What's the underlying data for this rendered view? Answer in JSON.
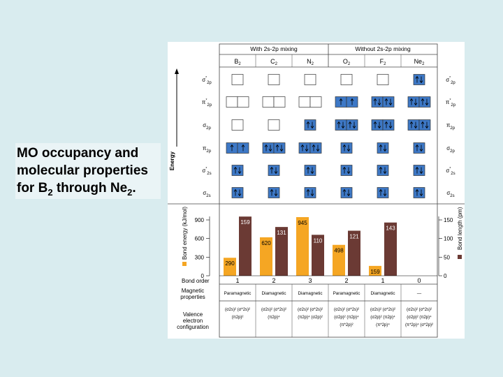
{
  "caption": {
    "line1": "MO occupancy and",
    "line2": "molecular properties",
    "line3_pre": "for B",
    "line3_sub": "2",
    "line3_mid": " through Ne",
    "line3_sub2": "2",
    "line3_end": "."
  },
  "colors": {
    "fill": "#3d78c6",
    "bar_energy": "#f5a623",
    "bar_length": "#6b3a34",
    "grid_line": "#444444",
    "bg": "#d9ecef"
  },
  "groups": {
    "with": "With 2s-2p mixing",
    "without": "Without 2s-2p mixing"
  },
  "molecules": [
    {
      "base": "B",
      "sub": "2"
    },
    {
      "base": "C",
      "sub": "2"
    },
    {
      "base": "N",
      "sub": "2"
    },
    {
      "base": "O",
      "sub": "2"
    },
    {
      "base": "F",
      "sub": "2"
    },
    {
      "base": "Ne",
      "sub": "2"
    }
  ],
  "energy_label": "Energy",
  "left_orbitals": [
    {
      "g": "σ",
      "s": "2p",
      "star": true
    },
    {
      "g": "π",
      "s": "2p",
      "star": true
    },
    {
      "g": "σ",
      "s": "2p",
      "star": false
    },
    {
      "g": "π",
      "s": "2p",
      "star": false
    },
    {
      "g": "σ",
      "s": "2s",
      "star": true
    },
    {
      "g": "σ",
      "s": "2s",
      "star": false
    }
  ],
  "right_orbitals": [
    {
      "g": "σ",
      "s": "2p",
      "star": true
    },
    {
      "g": "π",
      "s": "2p",
      "star": true
    },
    {
      "g": "π",
      "s": "2p",
      "star": false
    },
    {
      "g": "σ",
      "s": "2p",
      "star": false
    },
    {
      "g": "σ",
      "s": "2s",
      "star": true
    },
    {
      "g": "σ",
      "s": "2s",
      "star": false
    }
  ],
  "occupancy": [
    [
      [
        "e"
      ],
      [
        "e",
        "e"
      ],
      [
        "e"
      ],
      [
        "u",
        "u"
      ],
      [
        "p"
      ],
      [
        "p"
      ]
    ],
    [
      [
        "e"
      ],
      [
        "e",
        "e"
      ],
      [
        "e"
      ],
      [
        "p",
        "p"
      ],
      [
        "p"
      ],
      [
        "p"
      ]
    ],
    [
      [
        "e"
      ],
      [
        "e",
        "e"
      ],
      [
        "p"
      ],
      [
        "p",
        "p"
      ],
      [
        "p"
      ],
      [
        "p"
      ]
    ],
    [
      [
        "e"
      ],
      [
        "u",
        "u"
      ],
      [
        "p",
        "p"
      ],
      [
        "p"
      ],
      [
        "p"
      ],
      [
        "p"
      ]
    ],
    [
      [
        "e"
      ],
      [
        "p",
        "p"
      ],
      [
        "p",
        "p"
      ],
      [
        "p"
      ],
      [
        "p"
      ],
      [
        "p"
      ]
    ],
    [
      [
        "p"
      ],
      [
        "p",
        "p"
      ],
      [
        "p",
        "p"
      ],
      [
        "p"
      ],
      [
        "p"
      ],
      [
        "p"
      ]
    ]
  ],
  "chart_data": {
    "type": "bar",
    "categories": [
      "B2",
      "C2",
      "N2",
      "O2",
      "F2",
      "Ne2"
    ],
    "series": [
      {
        "name": "Bond energy (kJ/mol)",
        "values": [
          290,
          620,
          945,
          498,
          159,
          null
        ]
      },
      {
        "name": "Bond length (pm)",
        "values": [
          159,
          131,
          110,
          121,
          143,
          null
        ]
      }
    ],
    "y_left": {
      "label": "Bond energy (kJ/mol)",
      "ticks": [
        "900",
        "600",
        "300",
        "0"
      ],
      "range": [
        0,
        1000
      ]
    },
    "y_right": {
      "label": "Bond length (pm)",
      "ticks": [
        "150",
        "100",
        "50",
        "0"
      ],
      "range": [
        0,
        167
      ]
    }
  },
  "energy_value_labels": [
    "290",
    "620",
    "945",
    "498",
    "159",
    ""
  ],
  "length_value_labels": [
    "159",
    "131",
    "110",
    "121",
    "143",
    ""
  ],
  "properties": {
    "bond_order_label": "Bond order",
    "bond_order": [
      "1",
      "2",
      "3",
      "2",
      "1",
      "0"
    ],
    "magnetic_label_1": "Magnetic",
    "magnetic_label_2": "properties",
    "magnetic": [
      "Paramagnetic",
      "Diamagnetic",
      "Diamagnetic",
      "Paramagnetic",
      "Diamagnetic",
      "—"
    ],
    "valence_label_1": "Valence",
    "valence_label_2": "electron",
    "valence_label_3": "configuration",
    "valence": [
      [
        "(σ2s)² (σ*2s)²",
        "(π2p)²"
      ],
      [
        "(σ2s)² (σ*2s)²",
        "(π2p)⁴"
      ],
      [
        "(σ2s)² (σ*2s)²",
        "(π2p)⁴ (σ2p)²"
      ],
      [
        "(σ2s)² (σ*2s)²",
        "(σ2p)² (π2p)⁴",
        "(π*2p)²"
      ],
      [
        "(σ2s)² (σ*2s)²",
        "(σ2p)² (π2p)⁴",
        "(π*2p)⁴"
      ],
      [
        "(σ2s)² (σ*2s)²",
        "(σ2p)² (π2p)⁴",
        "(π*2p)⁴ (σ*2p)²"
      ]
    ]
  }
}
